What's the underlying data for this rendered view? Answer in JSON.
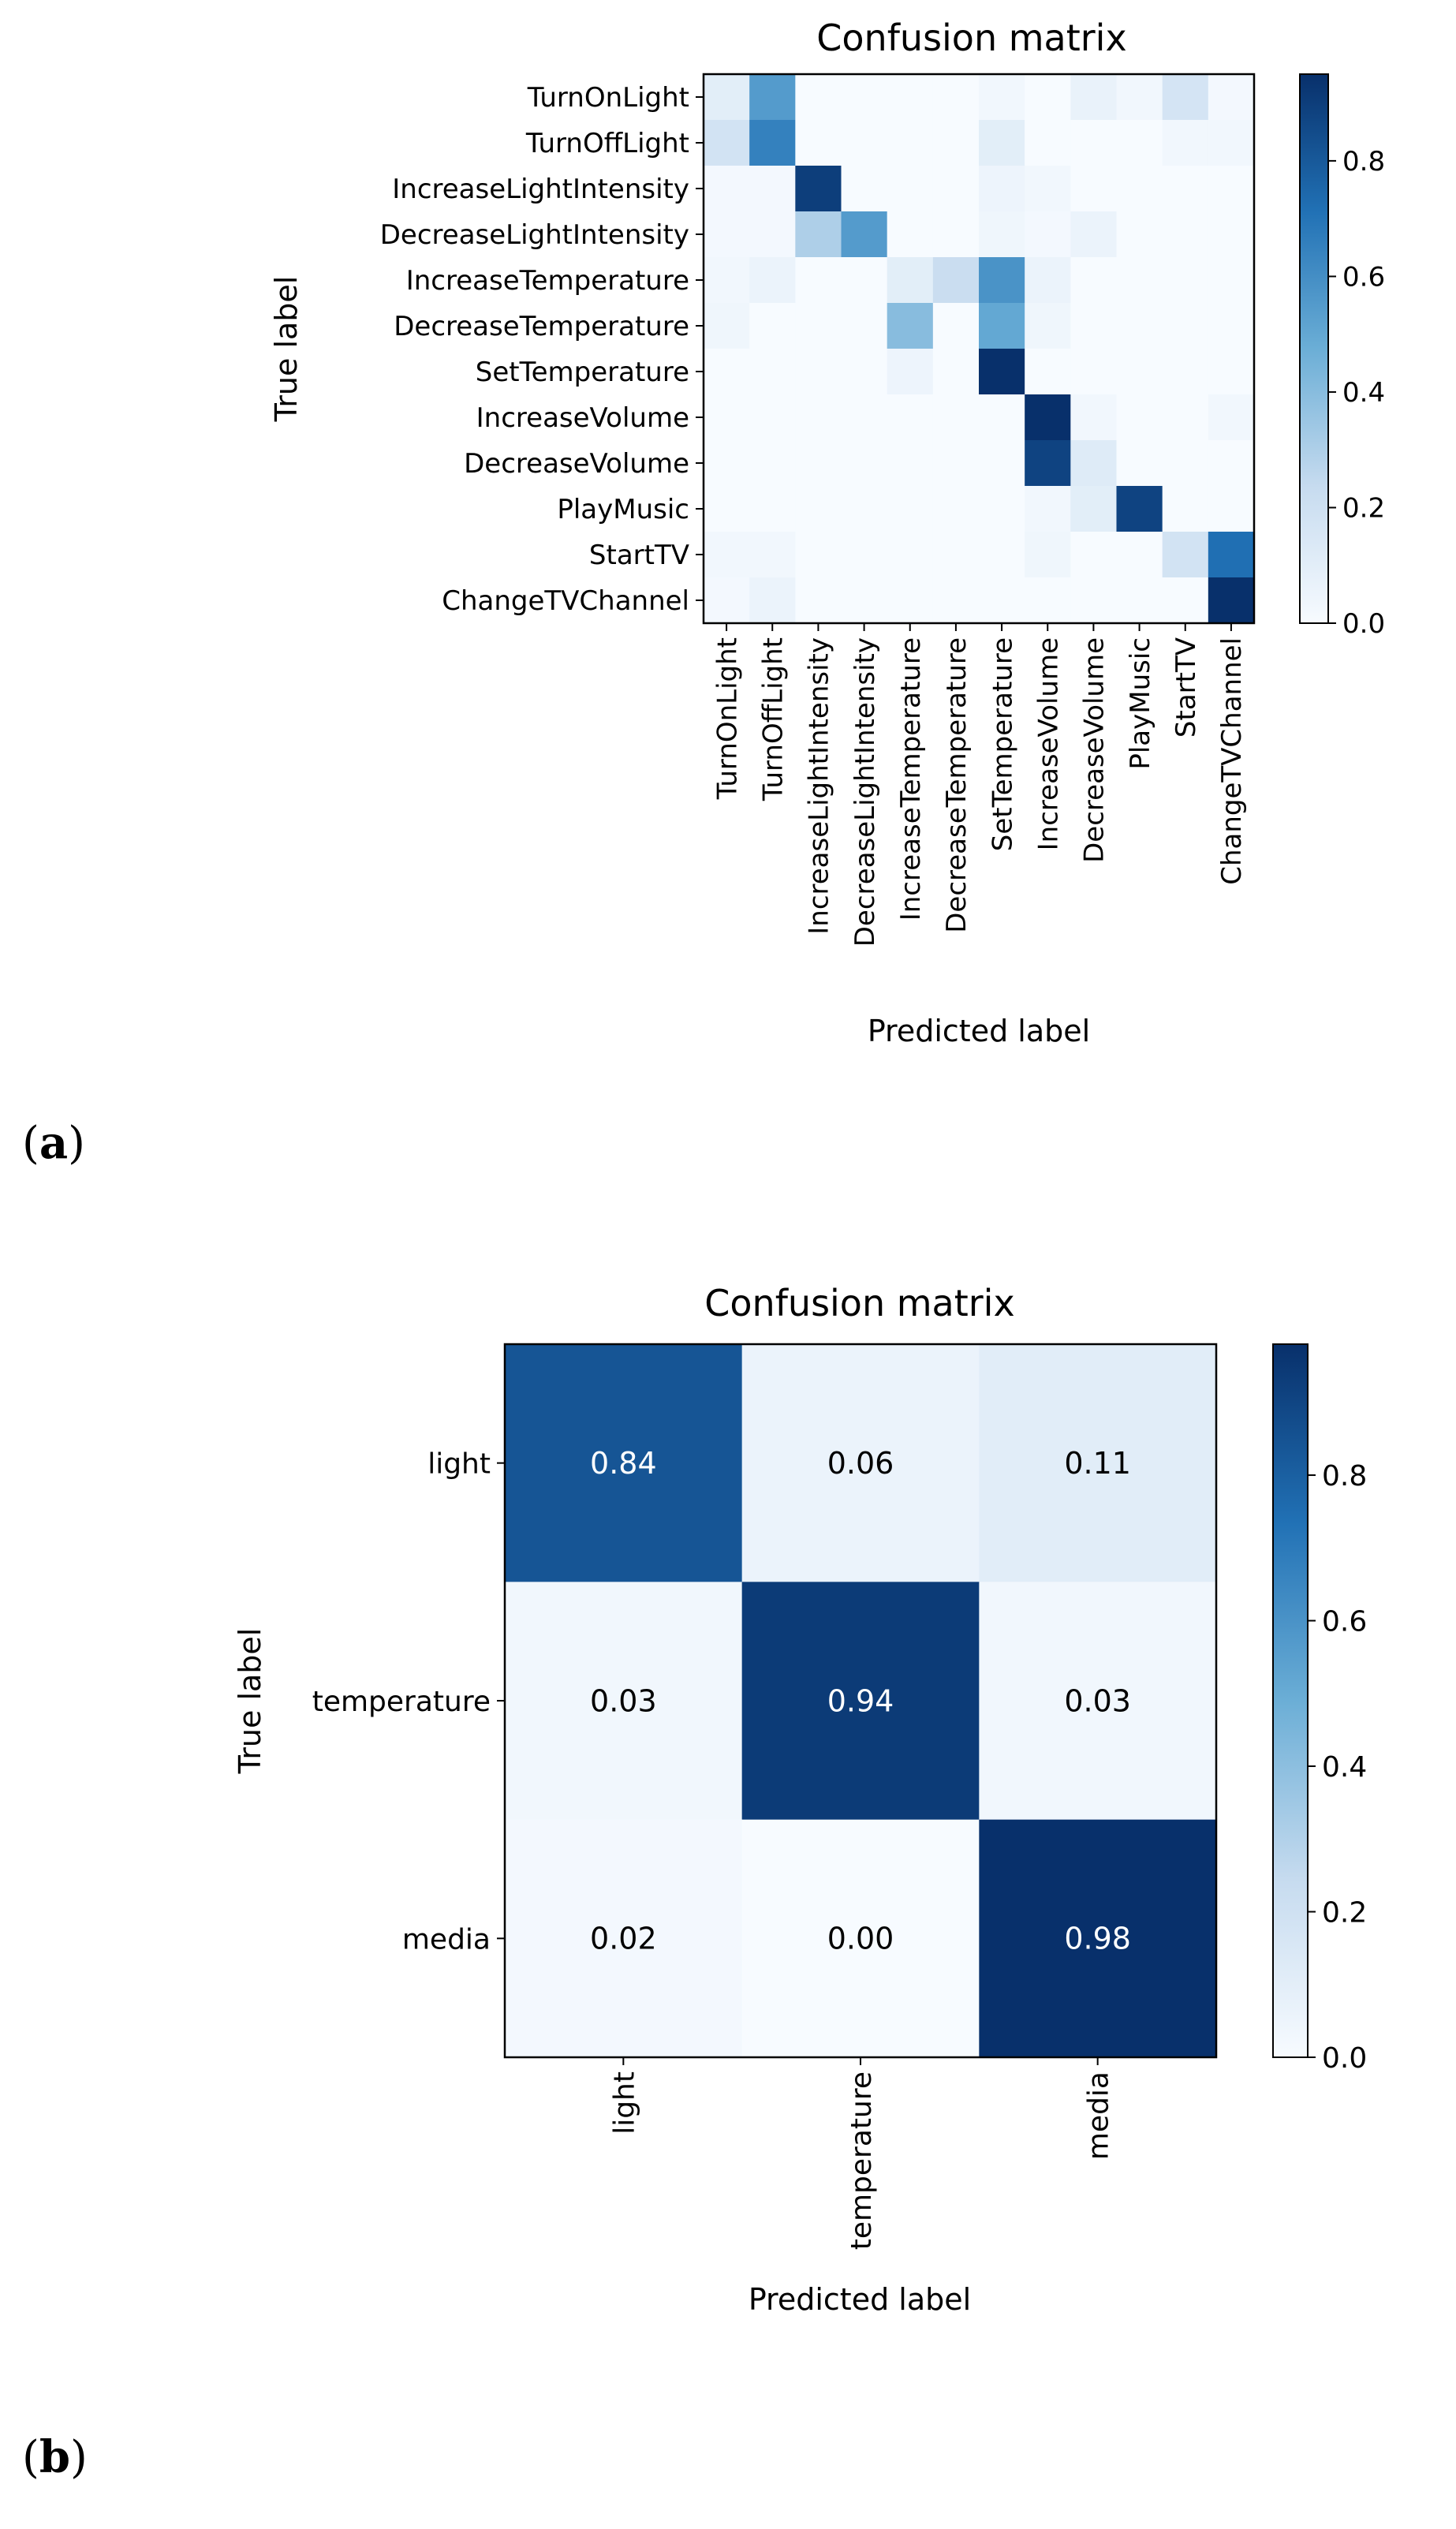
{
  "panels": [
    {
      "label_open": "(",
      "label_letter": "a",
      "label_close": ")"
    },
    {
      "label_open": "(",
      "label_letter": "b",
      "label_close": ")"
    }
  ],
  "chart_data": [
    {
      "type": "heatmap",
      "title": "Confusion matrix",
      "xlabel": "Predicted label",
      "ylabel": "True label",
      "colormap": "Blues",
      "color_low": "#f7fbff",
      "color_high": "#08306b",
      "colorbar": {
        "ticks": [
          "0.0",
          "0.2",
          "0.4",
          "0.6",
          "0.8"
        ],
        "min": 0.0,
        "max": 0.95
      },
      "show_values": false,
      "categories": [
        "TurnOnLight",
        "TurnOffLight",
        "IncreaseLightIntensity",
        "DecreaseLightIntensity",
        "IncreaseTemperature",
        "DecreaseTemperature",
        "SetTemperature",
        "IncreaseVolume",
        "DecreaseVolume",
        "PlayMusic",
        "StartTV",
        "ChangeTVChannel"
      ],
      "matrix": [
        [
          0.1,
          0.55,
          0.0,
          0.0,
          0.0,
          0.0,
          0.03,
          0.0,
          0.07,
          0.03,
          0.17,
          0.02
        ],
        [
          0.18,
          0.65,
          0.0,
          0.0,
          0.0,
          0.0,
          0.1,
          0.0,
          0.0,
          0.0,
          0.03,
          0.03
        ],
        [
          0.02,
          0.02,
          0.9,
          0.0,
          0.0,
          0.0,
          0.05,
          0.03,
          0.0,
          0.0,
          0.0,
          0.0
        ],
        [
          0.02,
          0.02,
          0.3,
          0.55,
          0.0,
          0.0,
          0.04,
          0.02,
          0.06,
          0.0,
          0.0,
          0.0
        ],
        [
          0.03,
          0.06,
          0.0,
          0.0,
          0.1,
          0.22,
          0.58,
          0.06,
          0.0,
          0.0,
          0.0,
          0.0
        ],
        [
          0.04,
          0.0,
          0.0,
          0.0,
          0.4,
          0.0,
          0.5,
          0.04,
          0.0,
          0.0,
          0.0,
          0.0
        ],
        [
          0.0,
          0.0,
          0.0,
          0.0,
          0.05,
          0.0,
          0.95,
          0.0,
          0.0,
          0.0,
          0.0,
          0.0
        ],
        [
          0.0,
          0.0,
          0.0,
          0.0,
          0.0,
          0.0,
          0.0,
          0.95,
          0.03,
          0.0,
          0.0,
          0.03
        ],
        [
          0.0,
          0.0,
          0.0,
          0.0,
          0.0,
          0.0,
          0.0,
          0.88,
          0.12,
          0.0,
          0.0,
          0.0
        ],
        [
          0.0,
          0.0,
          0.0,
          0.0,
          0.0,
          0.0,
          0.0,
          0.03,
          0.1,
          0.88,
          0.0,
          0.0
        ],
        [
          0.03,
          0.03,
          0.0,
          0.0,
          0.0,
          0.0,
          0.0,
          0.04,
          0.0,
          0.0,
          0.18,
          0.72
        ],
        [
          0.02,
          0.06,
          0.0,
          0.0,
          0.0,
          0.0,
          0.0,
          0.0,
          0.0,
          0.0,
          0.0,
          0.95
        ]
      ]
    },
    {
      "type": "heatmap",
      "title": "Confusion matrix",
      "xlabel": "Predicted label",
      "ylabel": "True label",
      "colormap": "Blues",
      "color_low": "#f7fbff",
      "color_high": "#08306b",
      "colorbar": {
        "ticks": [
          "0.0",
          "0.2",
          "0.4",
          "0.6",
          "0.8"
        ],
        "min": 0.0,
        "max": 0.98
      },
      "show_values": true,
      "categories": [
        "light",
        "temperature",
        "media"
      ],
      "matrix": [
        [
          0.84,
          0.06,
          0.11
        ],
        [
          0.03,
          0.94,
          0.03
        ],
        [
          0.02,
          0.0,
          0.98
        ]
      ],
      "cell_labels": [
        [
          "0.84",
          "0.06",
          "0.11"
        ],
        [
          "0.03",
          "0.94",
          "0.03"
        ],
        [
          "0.02",
          "0.00",
          "0.98"
        ]
      ]
    }
  ]
}
